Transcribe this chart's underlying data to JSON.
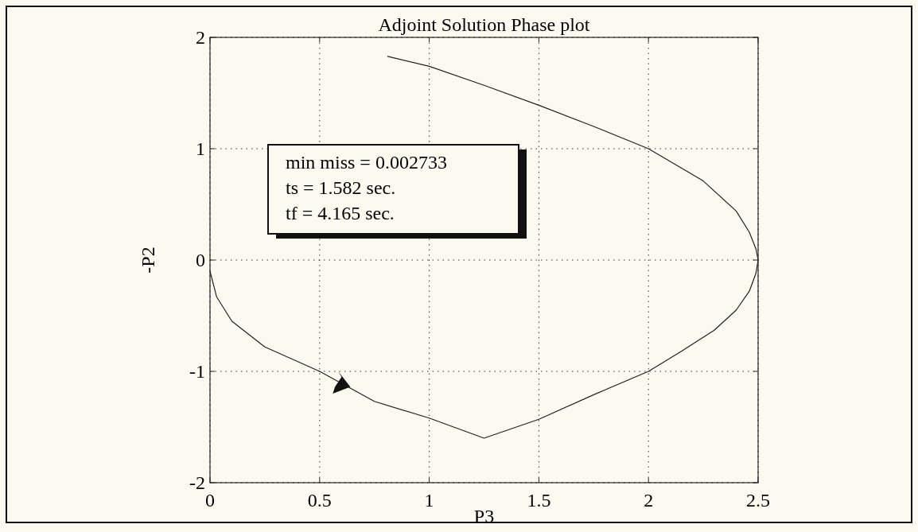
{
  "chart_data": {
    "type": "line",
    "title": "Adjoint Solution Phase plot",
    "xlabel": "P3",
    "ylabel": "-P2",
    "xlim": [
      0,
      2.5
    ],
    "xticks": [
      0,
      0.5,
      1,
      1.5,
      2,
      2.5
    ],
    "ylim": [
      -2,
      2
    ],
    "yticks": [
      -2,
      -1,
      0,
      1,
      2
    ],
    "grid": true,
    "annotations": [
      "min miss = 0.002733",
      "ts = 1.582 sec.",
      "tf = 4.165 sec."
    ],
    "series": [
      {
        "color": "#222222",
        "x": [
          0.81,
          1.0,
          1.25,
          1.5,
          1.75,
          2.0,
          2.25,
          2.4,
          2.46,
          2.49,
          2.5,
          2.49,
          2.46,
          2.4,
          2.3,
          2.15,
          2.0,
          1.75,
          1.5,
          1.25,
          1.0,
          0.75,
          0.5,
          0.25,
          0.1,
          0.03,
          0.0
        ],
        "values": [
          1.83,
          1.74,
          1.57,
          1.39,
          1.2,
          1.0,
          0.71,
          0.44,
          0.25,
          0.1,
          0.0,
          -0.12,
          -0.28,
          -0.45,
          -0.63,
          -0.82,
          -1.0,
          -1.21,
          -1.43,
          -1.6,
          -1.42,
          -1.27,
          -1.0,
          -0.78,
          -0.55,
          -0.33,
          -0.1
        ]
      }
    ]
  }
}
